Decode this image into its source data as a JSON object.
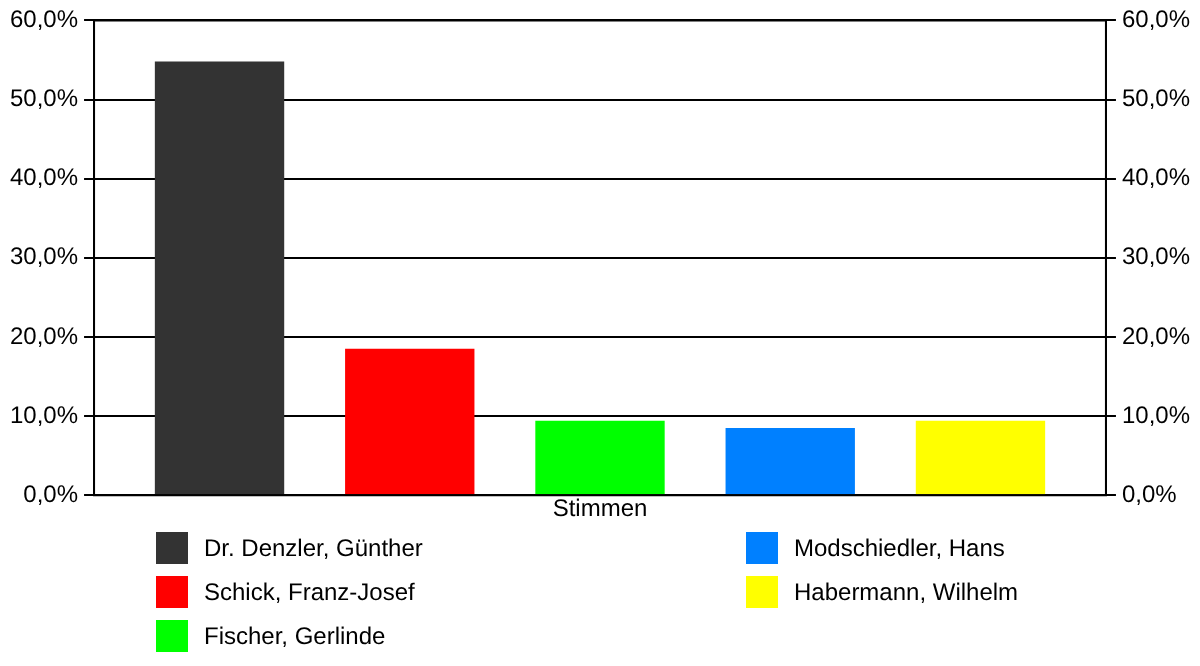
{
  "chart_data": {
    "type": "bar",
    "categories": [
      "Stimmen"
    ],
    "series": [
      {
        "name": "Dr. Denzler, Günther",
        "color": "#333333",
        "values": [
          54.8
        ]
      },
      {
        "name": "Schick, Franz-Josef",
        "color": "#ff0000",
        "values": [
          18.5
        ]
      },
      {
        "name": "Fischer, Gerlinde",
        "color": "#00ff00",
        "values": [
          9.4
        ]
      },
      {
        "name": "Modschiedler, Hans",
        "color": "#0080ff",
        "values": [
          8.5
        ]
      },
      {
        "name": "Habermann, Wilhelm",
        "color": "#ffff00",
        "values": [
          9.4
        ]
      }
    ],
    "ylim": [
      0,
      60
    ],
    "yticks": [
      {
        "value": 0,
        "label": "0,0%"
      },
      {
        "value": 10,
        "label": "10,0%"
      },
      {
        "value": 20,
        "label": "20,0%"
      },
      {
        "value": 30,
        "label": "30,0%"
      },
      {
        "value": 40,
        "label": "40,0%"
      },
      {
        "value": 50,
        "label": "50,0%"
      },
      {
        "value": 60,
        "label": "60,0%"
      }
    ],
    "grid": "y",
    "legend": "bottom"
  }
}
